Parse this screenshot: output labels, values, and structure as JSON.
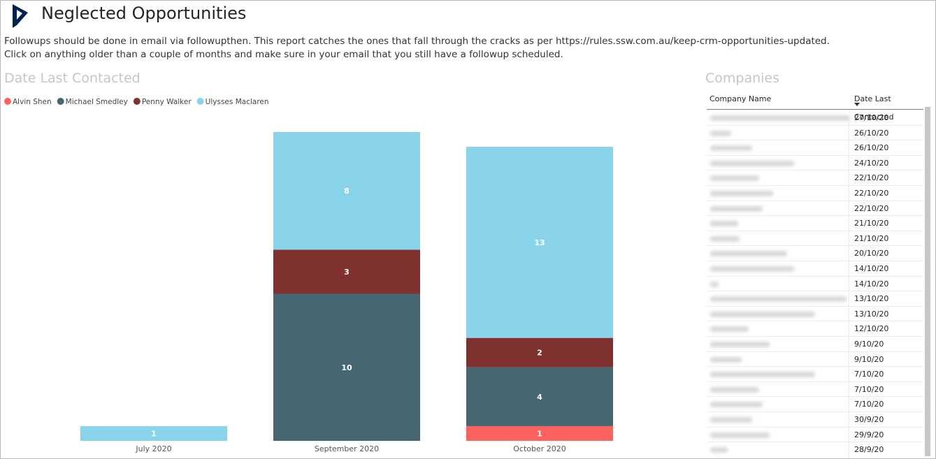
{
  "header": {
    "title": "Neglected Opportunities"
  },
  "description": [
    "Followups should be done in email via followupthen. This report catches the ones that fall through the cracks as per https://rules.ssw.com.au/keep-crm-opportunities-updated.",
    "Click on anything older than a couple of months and make sure in your email that you still have a followup scheduled."
  ],
  "chart_data": {
    "type": "bar",
    "stacked": true,
    "title": "Date Last Contacted",
    "categories": [
      "July 2020",
      "September 2020",
      "October 2020"
    ],
    "series": [
      {
        "name": "Alvin Shen",
        "color": "#fd625e",
        "values": [
          null,
          null,
          1
        ]
      },
      {
        "name": "Michael Smedley",
        "color": "#466672",
        "values": [
          null,
          10,
          4
        ]
      },
      {
        "name": "Penny Walker",
        "color": "#7f312f",
        "values": [
          null,
          3,
          2
        ]
      },
      {
        "name": "Ulysses Maclaren",
        "color": "#8ad4eb",
        "values": [
          1,
          8,
          13
        ]
      }
    ]
  },
  "table": {
    "title": "Companies",
    "columns": [
      "Company Name",
      "Date Last Contacted"
    ],
    "dates": [
      "27/10/20",
      "26/10/20",
      "26/10/20",
      "24/10/20",
      "22/10/20",
      "22/10/20",
      "22/10/20",
      "21/10/20",
      "21/10/20",
      "20/10/20",
      "14/10/20",
      "14/10/20",
      "13/10/20",
      "13/10/20",
      "12/10/20",
      "9/10/20",
      "9/10/20",
      "7/10/20",
      "7/10/20",
      "7/10/20",
      "30/9/20",
      "29/9/20",
      "28/9/20"
    ]
  }
}
